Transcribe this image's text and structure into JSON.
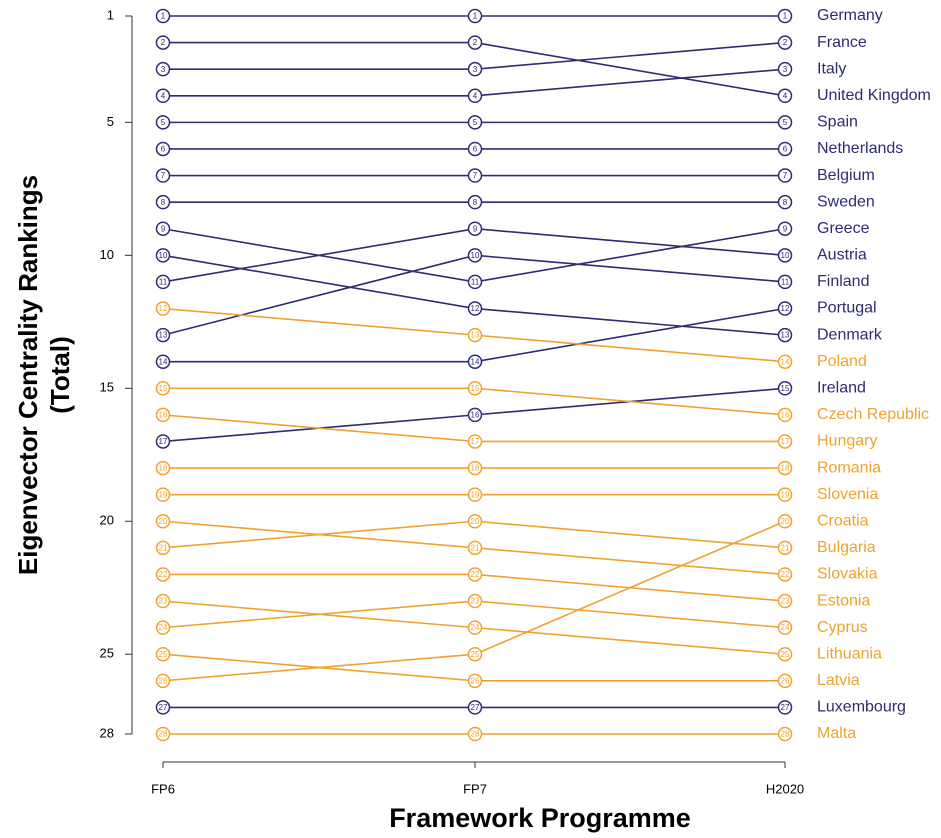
{
  "chart_data": {
    "type": "bump",
    "xlabel": "Framework Programme",
    "ylabel": [
      "Eigenvector Centrality Rankings",
      "(Total)"
    ],
    "categories": [
      "FP6",
      "FP7",
      "H2020"
    ],
    "ylim": [
      1,
      28
    ],
    "y_reversed": true,
    "yticks": [
      1,
      5,
      10,
      15,
      20,
      25,
      28
    ],
    "series": [
      {
        "name": "Germany",
        "color": "#2e2c72",
        "values": [
          1,
          1,
          1
        ]
      },
      {
        "name": "France",
        "color": "#2e2c72",
        "values": [
          3,
          3,
          2
        ]
      },
      {
        "name": "Italy",
        "color": "#2e2c72",
        "values": [
          4,
          4,
          3
        ]
      },
      {
        "name": "United Kingdom",
        "color": "#2e2c72",
        "values": [
          2,
          2,
          4
        ]
      },
      {
        "name": "Spain",
        "color": "#2e2c72",
        "values": [
          5,
          5,
          5
        ]
      },
      {
        "name": "Netherlands",
        "color": "#2e2c72",
        "values": [
          6,
          6,
          6
        ]
      },
      {
        "name": "Belgium",
        "color": "#2e2c72",
        "values": [
          7,
          7,
          7
        ]
      },
      {
        "name": "Sweden",
        "color": "#2e2c72",
        "values": [
          8,
          8,
          8
        ]
      },
      {
        "name": "Greece",
        "color": "#2e2c72",
        "values": [
          9,
          11,
          9
        ]
      },
      {
        "name": "Austria",
        "color": "#2e2c72",
        "values": [
          11,
          9,
          10
        ]
      },
      {
        "name": "Finland",
        "color": "#2e2c72",
        "values": [
          13,
          10,
          11
        ]
      },
      {
        "name": "Portugal",
        "color": "#2e2c72",
        "values": [
          14,
          14,
          12
        ]
      },
      {
        "name": "Denmark",
        "color": "#2e2c72",
        "values": [
          10,
          12,
          13
        ]
      },
      {
        "name": "Poland",
        "color": "#f0a22e",
        "values": [
          12,
          13,
          14
        ]
      },
      {
        "name": "Ireland",
        "color": "#2e2c72",
        "values": [
          17,
          16,
          15
        ]
      },
      {
        "name": "Czech Republic",
        "color": "#f0a22e",
        "values": [
          15,
          15,
          16
        ]
      },
      {
        "name": "Hungary",
        "color": "#f0a22e",
        "values": [
          16,
          17,
          17
        ]
      },
      {
        "name": "Romania",
        "color": "#f0a22e",
        "values": [
          18,
          18,
          18
        ]
      },
      {
        "name": "Slovenia",
        "color": "#f0a22e",
        "values": [
          19,
          19,
          19
        ]
      },
      {
        "name": "Croatia",
        "color": "#f0a22e",
        "values": [
          26,
          25,
          20
        ]
      },
      {
        "name": "Bulgaria",
        "color": "#f0a22e",
        "values": [
          21,
          20,
          21
        ]
      },
      {
        "name": "Slovakia",
        "color": "#f0a22e",
        "values": [
          20,
          21,
          22
        ]
      },
      {
        "name": "Estonia",
        "color": "#f0a22e",
        "values": [
          22,
          22,
          23
        ]
      },
      {
        "name": "Cyprus",
        "color": "#f0a22e",
        "values": [
          24,
          23,
          24
        ]
      },
      {
        "name": "Lithuania",
        "color": "#f0a22e",
        "values": [
          23,
          24,
          25
        ]
      },
      {
        "name": "Latvia",
        "color": "#f0a22e",
        "values": [
          25,
          26,
          26
        ]
      },
      {
        "name": "Luxembourg",
        "color": "#2e2c72",
        "values": [
          27,
          27,
          27
        ]
      },
      {
        "name": "Malta",
        "color": "#f0a22e",
        "values": [
          28,
          28,
          28
        ]
      }
    ]
  }
}
